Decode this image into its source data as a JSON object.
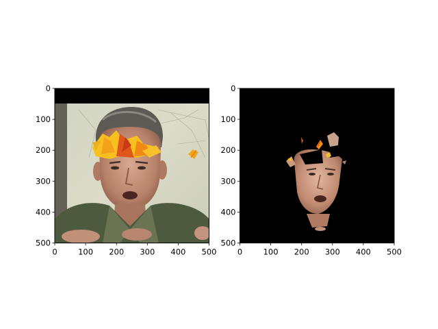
{
  "chart_data": [
    {
      "type": "image",
      "content": "photo of a man with orange autumn-leaf overlay across forehead, black band at top (rows 0-48)",
      "xlim": [
        0,
        500
      ],
      "ylim": [
        500,
        0
      ],
      "xticks": [
        0,
        100,
        200,
        300,
        400,
        500
      ],
      "yticks": [
        0,
        100,
        200,
        300,
        400,
        500
      ],
      "xlabel": "",
      "ylabel": "",
      "title": ""
    },
    {
      "type": "image",
      "content": "segmented face mask on black background with leaf fragments",
      "xlim": [
        0,
        500
      ],
      "ylim": [
        500,
        0
      ],
      "xticks": [
        0,
        100,
        200,
        300,
        400,
        500
      ],
      "yticks": [
        0,
        100,
        200,
        300,
        400,
        500
      ],
      "xlabel": "",
      "ylabel": "",
      "title": ""
    }
  ],
  "colors": {
    "background": "#ffffff",
    "axes_edge": "#000000",
    "mask_background": "#000000",
    "leaf_orange": "#f08a14",
    "leaf_yellow": "#f6c11e",
    "leaf_red": "#d9471a"
  }
}
